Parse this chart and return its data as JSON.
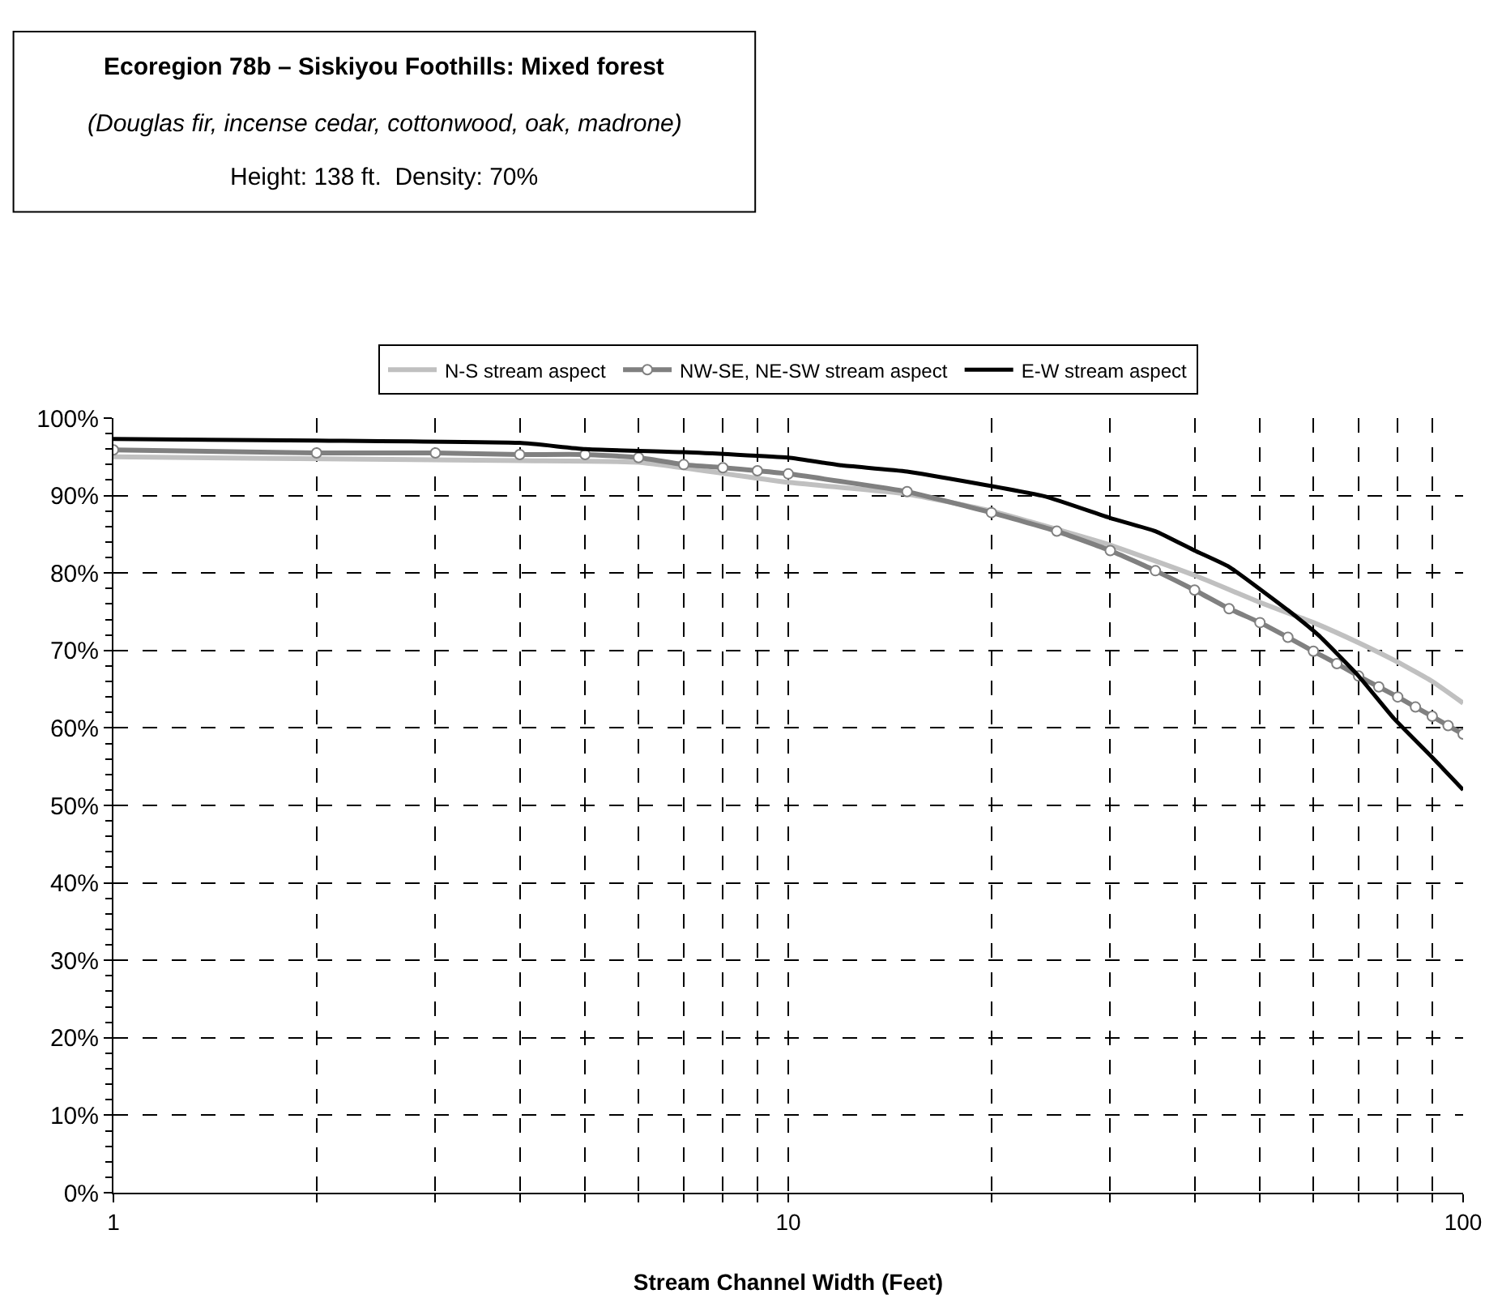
{
  "chart_data": {
    "type": "line",
    "title": "Ecoregion 78b – Siskiyou Foothills: Mixed forest",
    "subtitle": "(Douglas fir, incense cedar, cottonwood, oak, madrone)",
    "annotations": [
      "Height: 138 ft.  Density: 70%"
    ],
    "xlabel": "Stream Channel Width (Feet)",
    "log": "x",
    "grid": true,
    "legend": "top",
    "line_style": "solid",
    "xlim": [
      1,
      100
    ],
    "xticks": [
      1,
      {
        "value": 2,
        "label": null
      },
      {
        "value": 3,
        "label": null
      },
      {
        "value": 4,
        "label": null
      },
      {
        "value": 5,
        "label": null
      },
      {
        "value": 6,
        "label": null
      },
      {
        "value": 7,
        "label": null
      },
      {
        "value": 8,
        "label": null
      },
      {
        "value": 9,
        "label": null
      },
      10,
      {
        "value": 20,
        "label": null
      },
      {
        "value": 30,
        "label": null
      },
      {
        "value": 40,
        "label": null
      },
      {
        "value": 50,
        "label": null
      },
      {
        "value": 60,
        "label": null
      },
      {
        "value": 70,
        "label": null
      },
      {
        "value": 80,
        "label": null
      },
      {
        "value": 90,
        "label": null
      },
      100
    ],
    "ylim": [
      0,
      100
    ],
    "yticks": [
      {
        "value": 0,
        "label": "0%"
      },
      {
        "value": 10,
        "label": "10%"
      },
      {
        "value": 20,
        "label": "20%"
      },
      {
        "value": 30,
        "label": "30%"
      },
      {
        "value": 40,
        "label": "40%"
      },
      {
        "value": 50,
        "label": "50%"
      },
      {
        "value": 60,
        "label": "60%"
      },
      {
        "value": 70,
        "label": "70%"
      },
      {
        "value": 80,
        "label": "80%"
      },
      {
        "value": 90,
        "label": "90%"
      },
      {
        "value": 100,
        "label": "100%"
      }
    ],
    "series": [
      {
        "name": "N-S stream aspect",
        "color": "#c0c0c0",
        "marker": "none",
        "x": [
          1,
          4,
          6,
          10,
          15,
          20,
          30,
          40,
          50,
          60,
          70,
          80,
          90,
          100
        ],
        "values": [
          95.0,
          94.5,
          94.3,
          91.7,
          90.2,
          88.0,
          83.6,
          79.7,
          76.2,
          73.6,
          71.0,
          68.5,
          66.0,
          63.2
        ]
      },
      {
        "name": "NW-SE, NE-SW stream aspect",
        "color": "#808080",
        "marker": "circle",
        "x": [
          1,
          2,
          3,
          4,
          5,
          6,
          7,
          8,
          9,
          10,
          15,
          20,
          25,
          30,
          35,
          40,
          45,
          50,
          55,
          60,
          65,
          70,
          75,
          80,
          85,
          90,
          95,
          100
        ],
        "values": [
          95.9,
          95.5,
          95.5,
          95.3,
          95.3,
          94.9,
          94.0,
          93.6,
          93.2,
          92.8,
          90.5,
          87.8,
          85.4,
          82.9,
          80.3,
          77.8,
          75.4,
          73.6,
          71.7,
          69.9,
          68.3,
          66.7,
          65.3,
          64.0,
          62.7,
          61.5,
          60.3,
          59.2
        ]
      },
      {
        "name": "E-W stream aspect",
        "color": "#000000",
        "marker": "none",
        "x": [
          1,
          2,
          4,
          5,
          7,
          10,
          12,
          15,
          24,
          30,
          35,
          40,
          45,
          55,
          61,
          70,
          79,
          90,
          100
        ],
        "values": [
          97.3,
          97.1,
          96.8,
          96.0,
          95.6,
          94.9,
          93.9,
          93.1,
          89.9,
          87.1,
          85.4,
          82.9,
          80.8,
          75.2,
          72.0,
          66.7,
          61.2,
          56.2,
          52.0
        ]
      }
    ]
  }
}
